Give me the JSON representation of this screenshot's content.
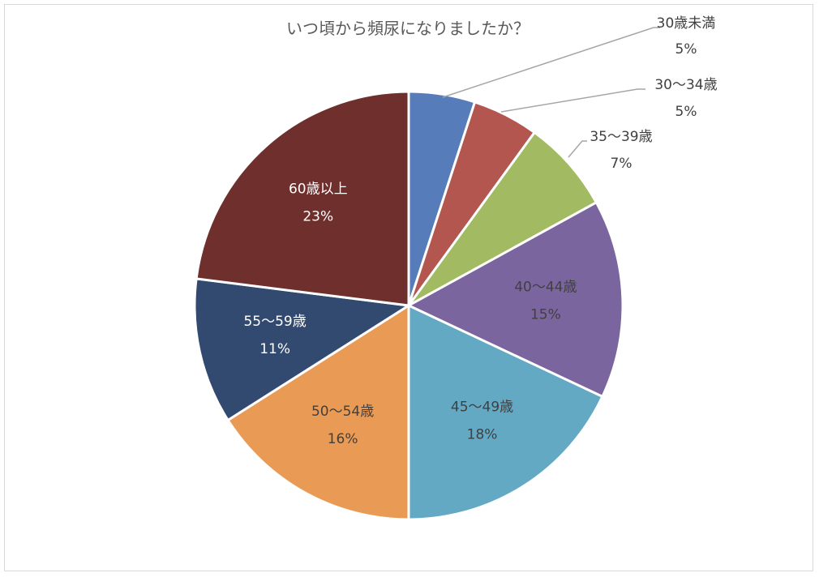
{
  "chart_data": {
    "type": "pie",
    "title": "いつ頃から頻尿になりましたか？",
    "slices": [
      {
        "label": "30歳未満",
        "value": 5,
        "percent_label": "5%",
        "color": "#567dba",
        "label_color": "#404040",
        "label_outside": true
      },
      {
        "label": "30～34歳",
        "value": 5,
        "percent_label": "5%",
        "color": "#b45650",
        "label_color": "#404040",
        "label_outside": true
      },
      {
        "label": "35～39歳",
        "value": 7,
        "percent_label": "7%",
        "color": "#a2bb63",
        "label_color": "#404040",
        "label_outside": true
      },
      {
        "label": "40～44歳",
        "value": 15,
        "percent_label": "15%",
        "color": "#7b659e",
        "label_color": "#404040",
        "label_outside": false
      },
      {
        "label": "45～49歳",
        "value": 18,
        "percent_label": "18%",
        "color": "#63a9c4",
        "label_color": "#404040",
        "label_outside": false
      },
      {
        "label": "50～54歳",
        "value": 16,
        "percent_label": "16%",
        "color": "#e99b56",
        "label_color": "#404040",
        "label_outside": false
      },
      {
        "label": "55～59歳",
        "value": 11,
        "percent_label": "11%",
        "color": "#334a70",
        "label_color": "#ffffff",
        "label_outside": false
      },
      {
        "label": "60歳以上",
        "value": 23,
        "percent_label": "23%",
        "color": "#6e2f2d",
        "label_color": "#ffffff",
        "label_outside": false
      }
    ],
    "start_angle_deg": 0,
    "direction": "clockwise",
    "legend": "none",
    "leader_line_color": "#a6a6a6",
    "slice_border_color": "#ffffff"
  }
}
